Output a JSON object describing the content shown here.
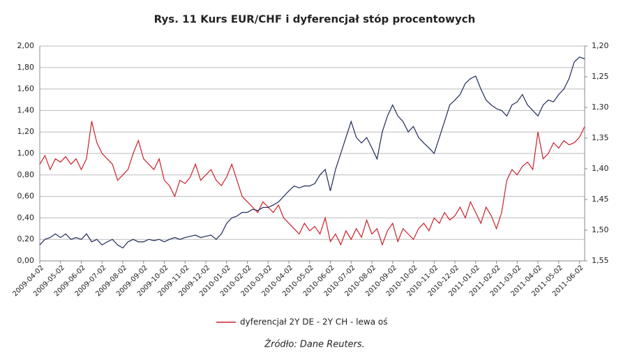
{
  "chart_data": {
    "type": "line",
    "title": "Rys. 11 Kurs EUR/CHF i dyferencjał stóp procentowych",
    "source": "Źródło: Dane Reuters.",
    "categories": [
      "2009-04-02",
      null,
      null,
      null,
      "2009-05-02",
      null,
      null,
      null,
      "2009-06-02",
      null,
      null,
      null,
      "2009-07-02",
      null,
      null,
      null,
      "2009-08-02",
      null,
      null,
      null,
      "2009-09-02",
      null,
      null,
      null,
      "2009-10-02",
      null,
      null,
      null,
      "2009-11-02",
      null,
      null,
      null,
      "2009-12-02",
      null,
      null,
      null,
      "2010-01-02",
      null,
      null,
      null,
      "2010-02-02",
      null,
      null,
      null,
      "2010-03-02",
      null,
      null,
      null,
      "2010-04-02",
      null,
      null,
      null,
      "2010-05-02",
      null,
      null,
      null,
      "2010-06-02",
      null,
      null,
      null,
      "2010-07-02",
      null,
      null,
      null,
      "2010-08-02",
      null,
      null,
      null,
      "2010-09-02",
      null,
      null,
      null,
      "2010-10-02",
      null,
      null,
      null,
      "2010-11-02",
      null,
      null,
      null,
      "2010-12-02",
      null,
      null,
      null,
      "2011-01-02",
      null,
      null,
      null,
      "2011-02-02",
      null,
      null,
      null,
      "2011-03-02",
      null,
      null,
      null,
      "2011-04-02",
      null,
      null,
      null,
      "2011-05-02",
      null,
      null,
      null,
      "2011-06-02",
      null
    ],
    "series": [
      {
        "name": "dyferencjał 2Y DE - 2Y CH - lewa oś",
        "color": "#cc1f2a",
        "values": [
          0.9,
          0.98,
          0.85,
          0.95,
          0.92,
          0.97,
          0.9,
          0.95,
          0.85,
          0.95,
          1.3,
          1.1,
          1.0,
          0.95,
          0.9,
          0.75,
          0.8,
          0.85,
          1.0,
          1.12,
          0.95,
          0.9,
          0.85,
          0.95,
          0.75,
          0.7,
          0.6,
          0.75,
          0.72,
          0.78,
          0.9,
          0.75,
          0.8,
          0.85,
          0.75,
          0.7,
          0.78,
          0.9,
          0.75,
          0.6,
          0.55,
          0.5,
          0.45,
          0.55,
          0.5,
          0.45,
          0.52,
          0.4,
          0.35,
          0.3,
          0.25,
          0.35,
          0.28,
          0.32,
          0.25,
          0.4,
          0.18,
          0.25,
          0.15,
          0.28,
          0.2,
          0.3,
          0.22,
          0.38,
          0.25,
          0.3,
          0.15,
          0.28,
          0.35,
          0.18,
          0.3,
          0.25,
          0.2,
          0.3,
          0.35,
          0.28,
          0.4,
          0.35,
          0.45,
          0.38,
          0.42,
          0.5,
          0.4,
          0.55,
          0.45,
          0.35,
          0.5,
          0.42,
          0.3,
          0.45,
          0.75,
          0.85,
          0.8,
          0.88,
          0.92,
          0.85,
          1.2,
          0.95,
          1.0,
          1.1,
          1.05,
          1.12,
          1.08,
          1.1,
          1.15,
          1.25
        ]
      },
      {
        "color": "#1f2a5a",
        "axis": "y2",
        "values": [
          1.524,
          1.515,
          1.512,
          1.506,
          1.512,
          1.506,
          1.515,
          1.512,
          1.515,
          1.506,
          1.519,
          1.515,
          1.524,
          1.519,
          1.515,
          1.524,
          1.529,
          1.519,
          1.515,
          1.519,
          1.519,
          1.515,
          1.517,
          1.515,
          1.519,
          1.515,
          1.512,
          1.515,
          1.512,
          1.51,
          1.508,
          1.512,
          1.51,
          1.508,
          1.515,
          1.506,
          1.489,
          1.48,
          1.477,
          1.471,
          1.471,
          1.466,
          1.468,
          1.463,
          1.463,
          1.459,
          1.454,
          1.445,
          1.436,
          1.428,
          1.431,
          1.428,
          1.428,
          1.424,
          1.41,
          1.401,
          1.436,
          1.401,
          1.375,
          1.349,
          1.323,
          1.349,
          1.358,
          1.349,
          1.366,
          1.384,
          1.34,
          1.314,
          1.296,
          1.314,
          1.323,
          1.34,
          1.331,
          1.349,
          1.358,
          1.366,
          1.375,
          1.349,
          1.323,
          1.296,
          1.288,
          1.279,
          1.261,
          1.253,
          1.249,
          1.27,
          1.288,
          1.296,
          1.302,
          1.305,
          1.314,
          1.296,
          1.291,
          1.279,
          1.296,
          1.305,
          1.314,
          1.296,
          1.288,
          1.291,
          1.279,
          1.27,
          1.253,
          1.226,
          1.218,
          1.221
        ]
      }
    ],
    "ylim": [
      0,
      2
    ],
    "yticks": [
      {
        "value": 0,
        "label": "0,00"
      },
      {
        "value": 0.2,
        "label": "0,20"
      },
      {
        "value": 0.4,
        "label": "0,40"
      },
      {
        "value": 0.6,
        "label": "0,60"
      },
      {
        "value": 0.8,
        "label": "0,80"
      },
      {
        "value": 1,
        "label": "1,00"
      },
      {
        "value": 1.2,
        "label": "1,20"
      },
      {
        "value": 1.4,
        "label": "1,40"
      },
      {
        "value": 1.6,
        "label": "1,60"
      },
      {
        "value": 1.8,
        "label": "1,80"
      },
      {
        "value": 2,
        "label": "2,00"
      }
    ],
    "y2lim": [
      1.55,
      1.2
    ],
    "y2ticks": [
      {
        "value": 1.2,
        "label": "1,20"
      },
      {
        "value": 1.25,
        "label": "1,25"
      },
      {
        "value": 1.3,
        "label": "1,30"
      },
      {
        "value": 1.35,
        "label": "1,35"
      },
      {
        "value": 1.4,
        "label": "1,40"
      },
      {
        "value": 1.45,
        "label": "1,45"
      },
      {
        "value": 1.5,
        "label": "1,50"
      },
      {
        "value": 1.55,
        "label": "1,55"
      }
    ],
    "grid": true,
    "legend": "bottom"
  }
}
